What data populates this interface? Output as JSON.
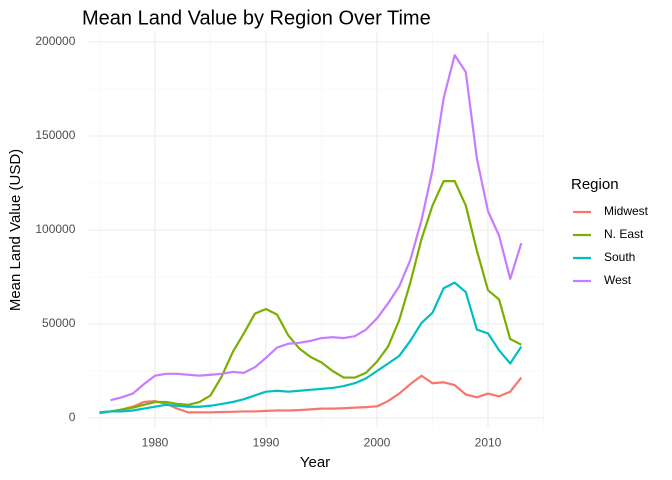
{
  "chart_data": {
    "type": "line",
    "title": "Mean Land Value by Region Over Time",
    "x_label": "Year",
    "y_label": "Mean Land Value (USD)",
    "legend_title": "Region",
    "x": [
      1975,
      1976,
      1977,
      1978,
      1979,
      1980,
      1981,
      1982,
      1983,
      1984,
      1985,
      1986,
      1987,
      1988,
      1989,
      1990,
      1991,
      1992,
      1993,
      1994,
      1995,
      1996,
      1997,
      1998,
      1999,
      2000,
      2001,
      2002,
      2003,
      2004,
      2005,
      2006,
      2007,
      2008,
      2009,
      2010,
      2011,
      2012,
      2013
    ],
    "series": [
      {
        "name": "Midwest",
        "color": "#f8766d",
        "values": [
          2500,
          3500,
          4500,
          6000,
          8500,
          9000,
          7500,
          5000,
          3000,
          3000,
          3000,
          3200,
          3300,
          3500,
          3500,
          3800,
          4000,
          4000,
          4200,
          4600,
          5000,
          5000,
          5200,
          5500,
          5800,
          6200,
          9000,
          13000,
          18000,
          22500,
          18500,
          19000,
          17500,
          12500,
          11000,
          13000,
          11500,
          14000,
          21500
        ]
      },
      {
        "name": "N. East",
        "color": "#7cae00",
        "values": [
          3000,
          3500,
          4500,
          5500,
          7000,
          8500,
          8500,
          7500,
          7000,
          8500,
          12000,
          22000,
          35000,
          45000,
          55500,
          58000,
          55000,
          44000,
          37000,
          32500,
          29500,
          25000,
          21500,
          21500,
          24000,
          30000,
          38000,
          52000,
          72000,
          95000,
          113000,
          126000,
          126000,
          113000,
          89000,
          68000,
          63000,
          42000,
          39000
        ]
      },
      {
        "name": "South",
        "color": "#00bfc4",
        "values": [
          3000,
          3500,
          3500,
          4000,
          5000,
          6000,
          7000,
          6500,
          6000,
          6000,
          6500,
          7500,
          8500,
          10000,
          12000,
          14000,
          14500,
          14000,
          14500,
          15000,
          15500,
          16000,
          17000,
          18500,
          21000,
          25000,
          29000,
          33000,
          41000,
          50500,
          56000,
          69000,
          72000,
          67000,
          47000,
          45000,
          36000,
          29000,
          38000
        ]
      },
      {
        "name": "West",
        "color": "#c77cff",
        "values": [
          null,
          9500,
          11000,
          13000,
          18000,
          22500,
          23500,
          23500,
          23000,
          22500,
          23000,
          23500,
          24500,
          24000,
          27000,
          32000,
          37500,
          39500,
          40000,
          41000,
          42500,
          43000,
          42500,
          43500,
          47000,
          53000,
          61000,
          70000,
          84000,
          105000,
          132000,
          170000,
          193000,
          184000,
          138000,
          110000,
          97000,
          74000,
          93000
        ]
      }
    ],
    "xlim": [
      1974,
      2015
    ],
    "ylim": [
      -5000,
      205000
    ],
    "xticks": [
      1980,
      1990,
      2000,
      2010
    ],
    "yticks": [
      0,
      50000,
      100000,
      150000,
      200000
    ],
    "grid": true,
    "legend_position": "right"
  }
}
